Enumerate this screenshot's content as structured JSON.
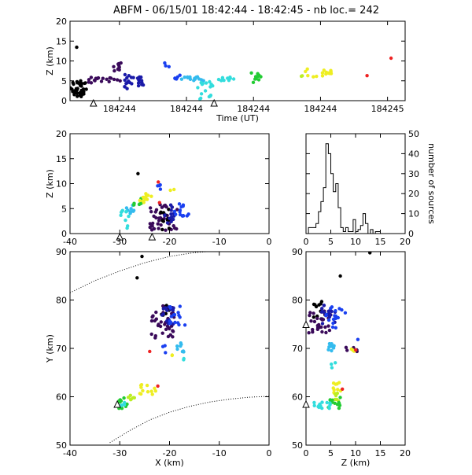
{
  "title": "ABFM - 06/15/01 18:42:44 - 18:42:45 - nb loc.=     242",
  "chart_data": [
    {
      "id": "time_height",
      "type": "scatter",
      "xlabel": "Time (UT)",
      "ylabel": "Z (km)",
      "xlim": [
        0,
        1
      ],
      "ylim": [
        0,
        20
      ],
      "x_ticks": [
        {
          "v": 0.1475,
          "label": "184244"
        },
        {
          "v": 0.3475,
          "label": "184244"
        },
        {
          "v": 0.5475,
          "label": "184244"
        },
        {
          "v": 0.7475,
          "label": "184244"
        },
        {
          "v": 0.9475,
          "label": "184245"
        }
      ],
      "y_ticks": [
        0,
        5,
        10,
        15,
        20
      ],
      "markers": [
        {
          "x": 0.07,
          "y": -0.8
        },
        {
          "x": 0.43,
          "y": -0.8
        }
      ],
      "clusters": [
        {
          "color": "#000000",
          "x": [
            0.0,
            0.05
          ],
          "y": [
            1,
            5
          ],
          "n": 40
        },
        {
          "color": "#000000",
          "x": [
            0.015,
            0.025
          ],
          "y": [
            12.5,
            13.5
          ],
          "n": 1
        },
        {
          "color": "#3a0a5a",
          "x": [
            0.055,
            0.15
          ],
          "y": [
            4,
            6
          ],
          "n": 18
        },
        {
          "color": "#3a0a5a",
          "x": [
            0.12,
            0.16
          ],
          "y": [
            7.5,
            9.5
          ],
          "n": 10
        },
        {
          "color": "#1a1aa8",
          "x": [
            0.16,
            0.19
          ],
          "y": [
            3,
            7
          ],
          "n": 14
        },
        {
          "color": "#1a1aa8",
          "x": [
            0.2,
            0.22
          ],
          "y": [
            3,
            6
          ],
          "n": 12
        },
        {
          "color": "#1a40f0",
          "x": [
            0.28,
            0.3
          ],
          "y": [
            8.5,
            10.5
          ],
          "n": 3
        },
        {
          "color": "#1a40f0",
          "x": [
            0.3,
            0.33
          ],
          "y": [
            5,
            6.5
          ],
          "n": 6
        },
        {
          "color": "#33bbee",
          "x": [
            0.33,
            0.4
          ],
          "y": [
            5,
            6
          ],
          "n": 14
        },
        {
          "color": "#33dddd",
          "x": [
            0.38,
            0.43
          ],
          "y": [
            0,
            5
          ],
          "n": 16
        },
        {
          "color": "#33dddd",
          "x": [
            0.44,
            0.5
          ],
          "y": [
            5,
            6
          ],
          "n": 10
        },
        {
          "color": "#22cc33",
          "x": [
            0.54,
            0.57
          ],
          "y": [
            4,
            7
          ],
          "n": 10
        },
        {
          "color": "#bbee22",
          "x": [
            0.69,
            0.7
          ],
          "y": [
            6,
            7
          ],
          "n": 2
        },
        {
          "color": "#eeee22",
          "x": [
            0.7,
            0.78
          ],
          "y": [
            6,
            8
          ],
          "n": 16
        },
        {
          "color": "#ee2222",
          "x": [
            0.88,
            0.89
          ],
          "y": [
            5.8,
            6.3
          ],
          "n": 1
        },
        {
          "color": "#ee2222",
          "x": [
            0.95,
            0.96
          ],
          "y": [
            10.3,
            10.8
          ],
          "n": 1
        }
      ]
    },
    {
      "id": "xz_projection",
      "type": "scatter",
      "xlabel": "",
      "ylabel": "Z (km)",
      "xlim": [
        -40,
        0
      ],
      "ylim": [
        0,
        20
      ],
      "x_ticks": [
        -40,
        -30,
        -20,
        -10,
        0
      ],
      "y_ticks": [
        0,
        5,
        10,
        15,
        20
      ],
      "markers": [
        {
          "x": -30,
          "y": -0.8
        },
        {
          "x": -23.5,
          "y": -0.8
        }
      ],
      "clusters": [
        {
          "color": "#3a0a5a",
          "x": [
            -24,
            -18
          ],
          "y": [
            0.5,
            6
          ],
          "n": 40
        },
        {
          "color": "#000000",
          "x": [
            -22,
            -20
          ],
          "y": [
            0.5,
            5
          ],
          "n": 12
        },
        {
          "color": "#000000",
          "x": [
            -26.5,
            -25.5
          ],
          "y": [
            12,
            13
          ],
          "n": 1
        },
        {
          "color": "#1a1aa8",
          "x": [
            -21.5,
            -19
          ],
          "y": [
            2,
            6
          ],
          "n": 14
        },
        {
          "color": "#1a40f0",
          "x": [
            -19,
            -16
          ],
          "y": [
            3.5,
            6
          ],
          "n": 14
        },
        {
          "color": "#1a40f0",
          "x": [
            -22.5,
            -21
          ],
          "y": [
            8,
            10
          ],
          "n": 4
        },
        {
          "color": "#33bbee",
          "x": [
            -29,
            -27
          ],
          "y": [
            4,
            6
          ],
          "n": 8
        },
        {
          "color": "#33dddd",
          "x": [
            -30,
            -28
          ],
          "y": [
            1,
            5
          ],
          "n": 10
        },
        {
          "color": "#22cc33",
          "x": [
            -27.5,
            -25.5
          ],
          "y": [
            5.5,
            7
          ],
          "n": 6
        },
        {
          "color": "#eeee22",
          "x": [
            -26,
            -23.5
          ],
          "y": [
            6,
            8
          ],
          "n": 10
        },
        {
          "color": "#eeee22",
          "x": [
            -20,
            -19
          ],
          "y": [
            8,
            9
          ],
          "n": 2
        },
        {
          "color": "#ee2222",
          "x": [
            -22.5,
            -22
          ],
          "y": [
            10,
            10.7
          ],
          "n": 1
        },
        {
          "color": "#ee2222",
          "x": [
            -22.5,
            -22
          ],
          "y": [
            5.7,
            6.2
          ],
          "n": 1
        }
      ]
    },
    {
      "id": "height_histogram",
      "type": "bar",
      "xlabel": "",
      "ylabel": "number of sources",
      "xlim": [
        0,
        20
      ],
      "ylim": [
        0,
        50
      ],
      "x_ticks": [
        0,
        5,
        10,
        15,
        20
      ],
      "y_ticks": [
        0,
        10,
        20,
        30,
        40,
        50
      ],
      "bin_width": 0.5,
      "bin_start": 0,
      "counts": [
        0,
        3,
        3,
        3,
        5,
        11,
        16,
        23,
        45,
        40,
        30,
        21,
        25,
        13,
        3,
        1,
        3,
        1,
        1,
        7,
        1,
        2,
        4,
        10,
        5,
        0,
        2,
        0,
        1,
        1,
        0,
        0,
        0,
        0,
        0,
        0,
        0,
        0,
        0,
        0
      ]
    },
    {
      "id": "xy_plan",
      "type": "scatter",
      "xlabel": "X (km)",
      "ylabel": "Y (km)",
      "xlim": [
        -40,
        0
      ],
      "ylim": [
        50,
        90
      ],
      "x_ticks": [
        -40,
        -30,
        -20,
        -10,
        0
      ],
      "y_ticks": [
        50,
        60,
        70,
        80,
        90
      ],
      "markers": [
        {
          "x": -30.5,
          "y": 58.3
        }
      ],
      "range_rings": [
        [
          [
            -40,
            81.5
          ],
          [
            -35,
            84
          ],
          [
            -30,
            86
          ],
          [
            -25,
            87.7
          ],
          [
            -20,
            89
          ],
          [
            -15,
            89.8
          ],
          [
            -10,
            90.2
          ],
          [
            -5,
            90.5
          ],
          [
            0,
            90.6
          ]
        ],
        [
          [
            -32,
            50.5
          ],
          [
            -28,
            53
          ],
          [
            -24,
            55.2
          ],
          [
            -20,
            56.8
          ],
          [
            -16,
            58
          ],
          [
            -12,
            58.9
          ],
          [
            -8,
            59.5
          ],
          [
            -4,
            59.9
          ],
          [
            0,
            60.1
          ]
        ]
      ],
      "clusters": [
        {
          "color": "#000000",
          "x": [
            -26,
            -25.5
          ],
          "y": [
            89,
            89.8
          ],
          "n": 1
        },
        {
          "color": "#000000",
          "x": [
            -27,
            -26.5
          ],
          "y": [
            84.5,
            85.2
          ],
          "n": 1
        },
        {
          "color": "#000000",
          "x": [
            -22,
            -20
          ],
          "y": [
            76,
            79
          ],
          "n": 10
        },
        {
          "color": "#3a0a5a",
          "x": [
            -24,
            -19
          ],
          "y": [
            72,
            79
          ],
          "n": 35
        },
        {
          "color": "#1a1aa8",
          "x": [
            -21.5,
            -19
          ],
          "y": [
            75,
            79
          ],
          "n": 14
        },
        {
          "color": "#1a40f0",
          "x": [
            -20,
            -16.5
          ],
          "y": [
            74,
            79
          ],
          "n": 16
        },
        {
          "color": "#1a40f0",
          "x": [
            -21.5,
            -20.5
          ],
          "y": [
            69,
            71
          ],
          "n": 3
        },
        {
          "color": "#33bbee",
          "x": [
            -18.5,
            -17
          ],
          "y": [
            69,
            71.5
          ],
          "n": 8
        },
        {
          "color": "#33dddd",
          "x": [
            -17.5,
            -17
          ],
          "y": [
            67,
            68
          ],
          "n": 2
        },
        {
          "color": "#eeee22",
          "x": [
            -20,
            -19
          ],
          "y": [
            68.5,
            69.5
          ],
          "n": 2
        },
        {
          "color": "#ee2222",
          "x": [
            -24,
            -23
          ],
          "y": [
            69.3,
            70
          ],
          "n": 1
        },
        {
          "color": "#eeee22",
          "x": [
            -26,
            -22.5
          ],
          "y": [
            60.5,
            63
          ],
          "n": 12
        },
        {
          "color": "#ee2222",
          "x": [
            -22.5,
            -22
          ],
          "y": [
            61.5,
            62.3
          ],
          "n": 1
        },
        {
          "color": "#bbee22",
          "x": [
            -28.5,
            -27
          ],
          "y": [
            59,
            61
          ],
          "n": 6
        },
        {
          "color": "#22cc33",
          "x": [
            -30.5,
            -28.5
          ],
          "y": [
            57.5,
            60
          ],
          "n": 10
        },
        {
          "color": "#33dddd",
          "x": [
            -30,
            -29
          ],
          "y": [
            58,
            59
          ],
          "n": 4
        }
      ]
    },
    {
      "id": "zy_projection",
      "type": "scatter",
      "xlabel": "Z (km)",
      "ylabel": "",
      "xlim": [
        0,
        20
      ],
      "ylim": [
        50,
        90
      ],
      "x_ticks": [
        0,
        5,
        10,
        15,
        20
      ],
      "y_ticks": [
        50,
        60,
        70,
        80,
        90
      ],
      "markers": [
        {
          "x": 0,
          "y": 74.8
        },
        {
          "x": 0,
          "y": 58.3
        }
      ],
      "clusters": [
        {
          "color": "#000000",
          "x": [
            12.5,
            13
          ],
          "y": [
            89,
            89.8
          ],
          "n": 1
        },
        {
          "color": "#000000",
          "x": [
            6.5,
            7
          ],
          "y": [
            84.5,
            85.2
          ],
          "n": 1
        },
        {
          "color": "#000000",
          "x": [
            1.5,
            4
          ],
          "y": [
            76,
            80
          ],
          "n": 12
        },
        {
          "color": "#3a0a5a",
          "x": [
            0.5,
            5
          ],
          "y": [
            73,
            78
          ],
          "n": 30
        },
        {
          "color": "#1a1aa8",
          "x": [
            3,
            6
          ],
          "y": [
            75,
            79
          ],
          "n": 14
        },
        {
          "color": "#1a40f0",
          "x": [
            4,
            7
          ],
          "y": [
            74,
            79
          ],
          "n": 16
        },
        {
          "color": "#1a40f0",
          "x": [
            7,
            8
          ],
          "y": [
            77,
            78
          ],
          "n": 2
        },
        {
          "color": "#33bbee",
          "x": [
            4,
            6
          ],
          "y": [
            69,
            71.5
          ],
          "n": 8
        },
        {
          "color": "#33dddd",
          "x": [
            5,
            6
          ],
          "y": [
            66,
            68
          ],
          "n": 3
        },
        {
          "color": "#1a40f0",
          "x": [
            10,
            10.5
          ],
          "y": [
            71.5,
            72.5
          ],
          "n": 1
        },
        {
          "color": "#3a0a5a",
          "x": [
            8,
            10.5
          ],
          "y": [
            68.5,
            70.5
          ],
          "n": 5
        },
        {
          "color": "#eeee22",
          "x": [
            9,
            10
          ],
          "y": [
            69,
            70
          ],
          "n": 3
        },
        {
          "color": "#ee2222",
          "x": [
            9.5,
            10.3
          ],
          "y": [
            69.5,
            70.2
          ],
          "n": 1
        },
        {
          "color": "#eeee22",
          "x": [
            5.5,
            7.5
          ],
          "y": [
            60.5,
            63
          ],
          "n": 10
        },
        {
          "color": "#ee2222",
          "x": [
            7,
            7.5
          ],
          "y": [
            61.5,
            62.5
          ],
          "n": 1
        },
        {
          "color": "#bbee22",
          "x": [
            5.5,
            7
          ],
          "y": [
            59,
            61
          ],
          "n": 6
        },
        {
          "color": "#22cc33",
          "x": [
            4,
            7
          ],
          "y": [
            57.5,
            60
          ],
          "n": 12
        },
        {
          "color": "#33dddd",
          "x": [
            1,
            5
          ],
          "y": [
            57.5,
            59
          ],
          "n": 14
        }
      ]
    }
  ]
}
